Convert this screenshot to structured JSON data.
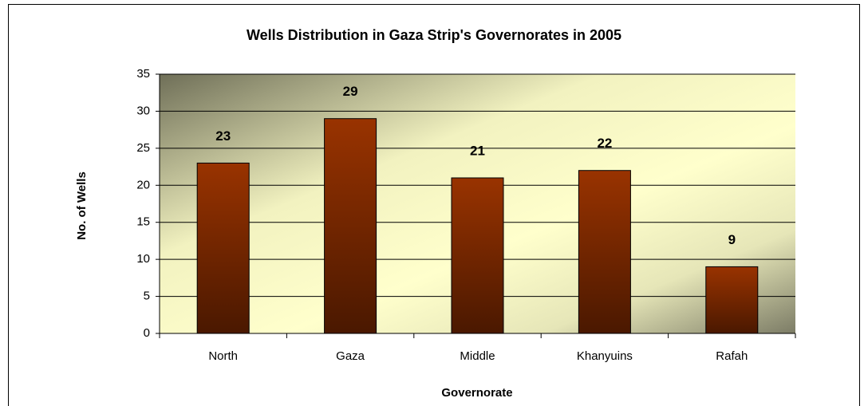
{
  "chart_data": {
    "type": "bar",
    "title": "Wells Distribution in Gaza Strip's Governorates in 2005",
    "x_label": "Governorate",
    "y_label": "No. of Wells",
    "categories": [
      "North",
      "Gaza",
      "Middle",
      "Khanyuins",
      "Rafah"
    ],
    "values": [
      23,
      29,
      21,
      22,
      9
    ],
    "color": "#993300",
    "ylim": [
      0,
      35
    ],
    "yticks": [
      0,
      5,
      10,
      15,
      20,
      25,
      30,
      35
    ],
    "grid": true
  }
}
